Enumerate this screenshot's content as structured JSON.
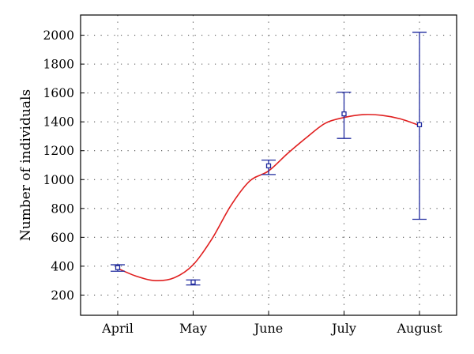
{
  "chart_data": {
    "type": "scatter",
    "title": "",
    "xlabel": "",
    "ylabel": "Number of individuals",
    "categories": [
      "April",
      "May",
      "June",
      "July",
      "August"
    ],
    "ylim": [
      60,
      2140
    ],
    "yticks": [
      200,
      400,
      600,
      800,
      1000,
      1200,
      1400,
      1600,
      1800,
      2000
    ],
    "grid": true,
    "series": [
      {
        "kind": "points_with_error_bars",
        "values": [
          390,
          290,
          1095,
          1455,
          1380
        ],
        "lower": [
          365,
          270,
          1035,
          1285,
          725
        ],
        "upper": [
          410,
          305,
          1135,
          1605,
          2020
        ]
      },
      {
        "kind": "fitted_curve",
        "x": [
          1,
          1.25,
          1.5,
          1.75,
          2,
          2.25,
          2.5,
          2.75,
          3,
          3.25,
          3.5,
          3.75,
          4,
          4.25,
          4.5,
          4.75,
          5
        ],
        "values": [
          385,
          330,
          300,
          320,
          410,
          590,
          820,
          990,
          1060,
          1180,
          1290,
          1390,
          1430,
          1450,
          1445,
          1420,
          1375
        ]
      }
    ],
    "colors": {
      "points": "#1f2a9e",
      "curve": "#e01f1f",
      "grid": "#555555",
      "frame": "#000000"
    }
  }
}
